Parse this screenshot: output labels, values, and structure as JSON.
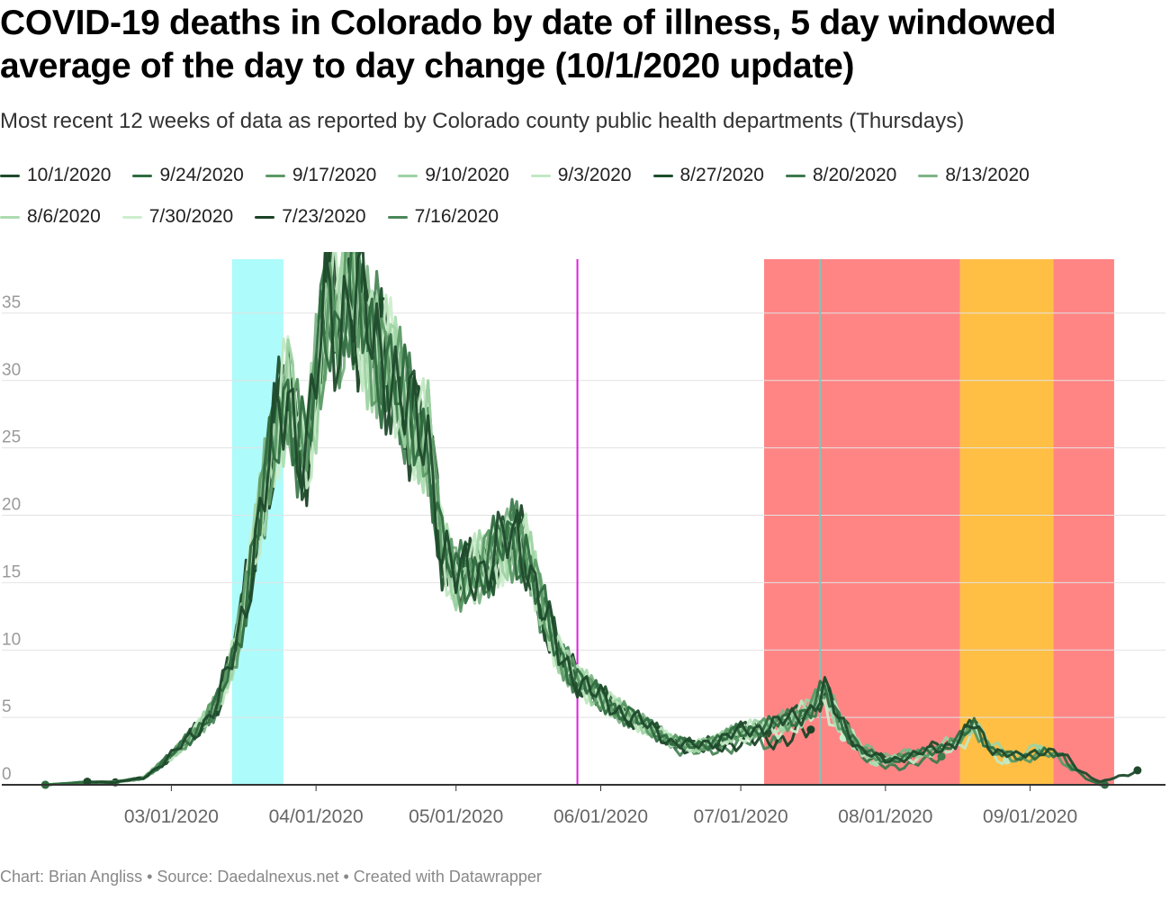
{
  "header": {
    "title": "COVID-19 deaths in Colorado by date of illness, 5 day windowed average of the day to day change (10/1/2020 update)",
    "subtitle": "Most recent 12 weeks of data as reported by Colorado county public health departments (Thursdays)"
  },
  "footer": {
    "text": "Chart: Brian Angliss • Source: Daedalnexus.net • Created with Datawrapper"
  },
  "chart_data": {
    "type": "line",
    "title": "COVID-19 deaths in Colorado by date of illness, 5 day windowed average of the day to day change (10/1/2020 update)",
    "xlabel": "",
    "ylabel": "",
    "x_start": "2020-02-01",
    "x_end": "2020-09-30",
    "ylim": [
      0,
      39
    ],
    "y_ticks": [
      0,
      5,
      10,
      15,
      20,
      25,
      30,
      35
    ],
    "x_ticks": [
      {
        "date": "2020-03-01",
        "label": "03/01/2020"
      },
      {
        "date": "2020-04-01",
        "label": "04/01/2020"
      },
      {
        "date": "2020-05-01",
        "label": "05/01/2020"
      },
      {
        "date": "2020-06-01",
        "label": "06/01/2020"
      },
      {
        "date": "2020-07-01",
        "label": "07/01/2020"
      },
      {
        "date": "2020-08-01",
        "label": "08/01/2020"
      },
      {
        "date": "2020-09-01",
        "label": "09/01/2020"
      }
    ],
    "highlight_ranges": [
      {
        "start": "2020-03-14",
        "end": "2020-03-25",
        "color": "#aefbfb"
      },
      {
        "start": "2020-07-06",
        "end": "2020-08-17",
        "color": "#ff8585"
      },
      {
        "start": "2020-08-17",
        "end": "2020-09-06",
        "color": "#ffbf45"
      },
      {
        "start": "2020-09-06",
        "end": "2020-09-19",
        "color": "#ff8585"
      }
    ],
    "reference_lines": [
      {
        "date": "2020-05-27",
        "color": "#e020e0"
      },
      {
        "date": "2020-07-18",
        "color": "#7fc6b9"
      }
    ],
    "base_points": [
      [
        "2020-02-03",
        0
      ],
      [
        "2020-02-12",
        0.2
      ],
      [
        "2020-02-18",
        0.2
      ],
      [
        "2020-02-24",
        0.5
      ],
      [
        "2020-02-27",
        1.3
      ],
      [
        "2020-03-01",
        2.2
      ],
      [
        "2020-03-04",
        3.2
      ],
      [
        "2020-03-08",
        4.6
      ],
      [
        "2020-03-11",
        6.1
      ],
      [
        "2020-03-15",
        10.5
      ],
      [
        "2020-03-18",
        16
      ],
      [
        "2020-03-21",
        21.8
      ],
      [
        "2020-03-24",
        27.2
      ],
      [
        "2020-03-26",
        29.6
      ],
      [
        "2020-03-28",
        26.0
      ],
      [
        "2020-03-30",
        24.5
      ],
      [
        "2020-04-02",
        32.5
      ],
      [
        "2020-04-04",
        36.5
      ],
      [
        "2020-04-06",
        33.0
      ],
      [
        "2020-04-08",
        38.0
      ],
      [
        "2020-04-10",
        35.5
      ],
      [
        "2020-04-13",
        33.0
      ],
      [
        "2020-04-16",
        31.5
      ],
      [
        "2020-04-19",
        29.0
      ],
      [
        "2020-04-22",
        26.5
      ],
      [
        "2020-04-25",
        26.0
      ],
      [
        "2020-04-28",
        17.5
      ],
      [
        "2020-05-01",
        15.2
      ],
      [
        "2020-05-04",
        15.8
      ],
      [
        "2020-05-07",
        16.2
      ],
      [
        "2020-05-10",
        17.5
      ],
      [
        "2020-05-13",
        18.3
      ],
      [
        "2020-05-16",
        17.3
      ],
      [
        "2020-05-19",
        13.5
      ],
      [
        "2020-05-23",
        9.8
      ],
      [
        "2020-05-27",
        7.8
      ],
      [
        "2020-06-01",
        6.4
      ],
      [
        "2020-06-06",
        5.3
      ],
      [
        "2020-06-11",
        4.4
      ],
      [
        "2020-06-16",
        3.2
      ],
      [
        "2020-06-21",
        2.9
      ],
      [
        "2020-06-26",
        3.3
      ],
      [
        "2020-07-01",
        4.0
      ],
      [
        "2020-07-06",
        4.3
      ],
      [
        "2020-07-11",
        4.8
      ],
      [
        "2020-07-16",
        5.6
      ],
      [
        "2020-07-19",
        7.0
      ],
      [
        "2020-07-22",
        5.0
      ],
      [
        "2020-07-27",
        2.5
      ],
      [
        "2020-08-01",
        1.8
      ],
      [
        "2020-08-06",
        2.1
      ],
      [
        "2020-08-11",
        2.6
      ],
      [
        "2020-08-16",
        3.1
      ],
      [
        "2020-08-20",
        4.5
      ],
      [
        "2020-08-24",
        2.6
      ],
      [
        "2020-08-29",
        2.1
      ],
      [
        "2020-09-04",
        2.6
      ],
      [
        "2020-09-08",
        2.2
      ],
      [
        "2020-09-12",
        1.0
      ],
      [
        "2020-09-16",
        0.2
      ],
      [
        "2020-09-20",
        0.6
      ],
      [
        "2020-09-24",
        1.0
      ]
    ],
    "series": [
      {
        "name": "10/1/2020",
        "color": "#1f4a2c",
        "start": "2020-02-12",
        "end": "2020-09-24",
        "offset": 0.0
      },
      {
        "name": "9/24/2020",
        "color": "#2f6b3f",
        "start": "2020-02-03",
        "end": "2020-09-17",
        "offset": -0.3
      },
      {
        "name": "9/17/2020",
        "color": "#5c9a66",
        "start": "2020-02-03",
        "end": "2020-09-10",
        "offset": -0.4
      },
      {
        "name": "9/10/2020",
        "color": "#9ed3a3",
        "start": "2020-02-03",
        "end": "2020-09-03",
        "offset": 0.3
      },
      {
        "name": "9/3/2020",
        "color": "#c1e8c2",
        "start": "2020-02-03",
        "end": "2020-08-27",
        "offset": -0.6
      },
      {
        "name": "8/27/2020",
        "color": "#1e4f2b",
        "start": "2020-02-12",
        "end": "2020-08-20",
        "offset": 0.2
      },
      {
        "name": "8/20/2020",
        "color": "#3d7a4d",
        "start": "2020-02-03",
        "end": "2020-08-13",
        "offset": -0.8
      },
      {
        "name": "8/13/2020",
        "color": "#7fb487",
        "start": "2020-02-03",
        "end": "2020-08-06",
        "offset": 0.4
      },
      {
        "name": "8/6/2020",
        "color": "#acdcb0",
        "start": "2020-02-03",
        "end": "2020-07-30",
        "offset": -0.5
      },
      {
        "name": "7/30/2020",
        "color": "#cdeecd",
        "start": "2020-02-03",
        "end": "2020-07-23",
        "offset": -0.9
      },
      {
        "name": "7/23/2020",
        "color": "#1b4226",
        "start": "2020-02-18",
        "end": "2020-07-16",
        "offset": -1.6
      },
      {
        "name": "7/16/2020",
        "color": "#4a8758",
        "start": "2020-02-03",
        "end": "2020-07-09",
        "offset": -1.2
      }
    ]
  }
}
